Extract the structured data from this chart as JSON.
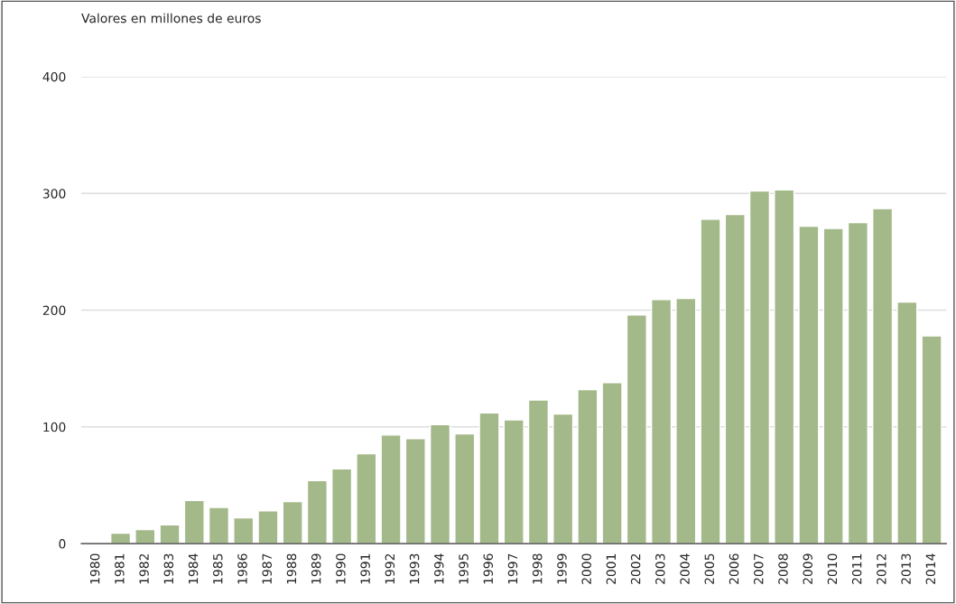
{
  "chart_data": {
    "type": "bar",
    "ylabel": "Valores en millones de euros",
    "categories": [
      "1980",
      "1981",
      "1982",
      "1983",
      "1984",
      "1985",
      "1986",
      "1987",
      "1988",
      "1989",
      "1990",
      "1991",
      "1992",
      "1993",
      "1994",
      "1995",
      "1996",
      "1997",
      "1998",
      "1999",
      "2000",
      "2001",
      "2002",
      "2003",
      "2004",
      "2005",
      "2006",
      "2007",
      "2008",
      "2009",
      "2010",
      "2011",
      "2012",
      "2013",
      "2014"
    ],
    "values": [
      null,
      9,
      12,
      16,
      37,
      31,
      22,
      28,
      36,
      54,
      64,
      77,
      93,
      90,
      102,
      94,
      112,
      106,
      123,
      111,
      132,
      138,
      196,
      209,
      210,
      278,
      282,
      302,
      303,
      272,
      270,
      275,
      287,
      207,
      178
    ],
    "color": "#a4b98a",
    "ylim": [
      0,
      400
    ],
    "yticks": [
      0,
      100,
      200,
      300,
      400
    ],
    "grid": "y",
    "legend": false
  }
}
